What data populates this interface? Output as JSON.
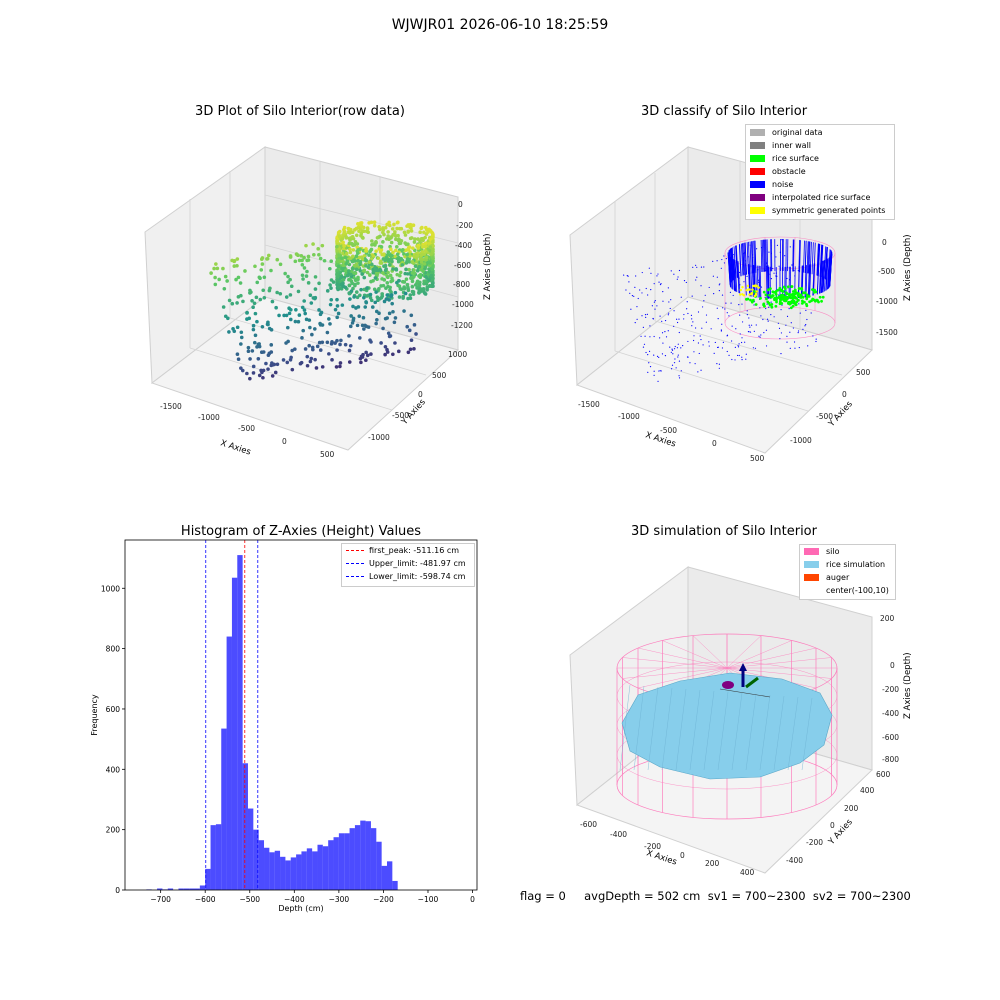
{
  "figure": {
    "suptitle": "WJWJR01 2026-06-10 18:25:59",
    "status_line": "flag = 0     avgDepth = 502 cm  sv1 = 700~2300  sv2 = 700~2300"
  },
  "panels": {
    "raw": {
      "title": "3D Plot of Silo Interior(row data)",
      "xlabel": "X Axies",
      "ylabel": "Y Axies",
      "zlabel": "Z Axies (Depth)",
      "xticks": [
        "-1500",
        "-1000",
        "-500",
        "0",
        "500"
      ],
      "yticks": [
        "1000",
        "500",
        "0",
        "-500",
        "-1000"
      ],
      "zticks": [
        "0",
        "-200",
        "-400",
        "-600",
        "-800",
        "-1000",
        "-1200"
      ]
    },
    "classify": {
      "title": "3D classify of Silo Interior",
      "xlabel": "X Axies",
      "ylabel": "Y Axies",
      "zlabel": "Z Axies (Depth)",
      "xticks": [
        "-1500",
        "-1000",
        "-500",
        "0",
        "500"
      ],
      "yticks": [
        "500",
        "0",
        "-500",
        "-1000"
      ],
      "zticks": [
        "0",
        "-500",
        "-1000",
        "-1500"
      ],
      "legend": [
        {
          "label": "original data",
          "color": "#b0b0b0"
        },
        {
          "label": "inner wall",
          "color": "#808080"
        },
        {
          "label": "rice surface",
          "color": "#00ff00"
        },
        {
          "label": "obstacle",
          "color": "#ff0000"
        },
        {
          "label": "noise",
          "color": "#0000ff"
        },
        {
          "label": "interpolated rice surface",
          "color": "#800080"
        },
        {
          "label": "symmetric generated points",
          "color": "#ffff00"
        }
      ]
    },
    "simulation": {
      "title": "3D simulation of Silo Interior",
      "xlabel": "X Axies",
      "ylabel": "Y Axies",
      "zlabel": "Z Axies (Depth)",
      "xticks": [
        "-600",
        "-400",
        "-200",
        "0",
        "200",
        "400"
      ],
      "yticks": [
        "600",
        "400",
        "200",
        "0",
        "-200",
        "-400"
      ],
      "zticks": [
        "200",
        "0",
        "-200",
        "-400",
        "-600",
        "-800"
      ],
      "legend": [
        {
          "label": "silo",
          "color": "#ff69b4"
        },
        {
          "label": "rice simulation",
          "color": "#87ceeb"
        },
        {
          "label": "auger",
          "color": "#ff4500"
        },
        {
          "label": "center(-100,10)",
          "color": "none"
        }
      ]
    }
  },
  "chart_data": {
    "type": "bar",
    "title": "Histogram of Z-Axies (Height) Values",
    "xlabel": "Depth (cm)",
    "ylabel": "Frequency",
    "xlim": [
      -780,
      10
    ],
    "ylim": [
      0,
      1160
    ],
    "xticks": [
      -700,
      -600,
      -500,
      -400,
      -300,
      -200,
      -100,
      0
    ],
    "yticks": [
      0,
      200,
      400,
      600,
      800,
      1000
    ],
    "bin_width": 12,
    "bin_lefts": [
      -732,
      -720,
      -708,
      -696,
      -684,
      -672,
      -660,
      -648,
      -636,
      -624,
      -612,
      -600,
      -588,
      -576,
      -564,
      -552,
      -540,
      -528,
      -516,
      -504,
      -492,
      -480,
      -468,
      -456,
      -444,
      -432,
      -420,
      -408,
      -396,
      -384,
      -372,
      -360,
      -348,
      -336,
      -324,
      -312,
      -300,
      -288,
      -276,
      -264,
      -252,
      -240,
      -228,
      -216,
      -204,
      -192,
      -180,
      -168,
      -156,
      -144,
      -132,
      -120,
      -108,
      -96,
      -84,
      -72,
      -60,
      -48,
      -36,
      -24
    ],
    "counts": [
      2,
      0,
      5,
      2,
      5,
      0,
      5,
      5,
      5,
      5,
      15,
      70,
      215,
      218,
      535,
      840,
      1035,
      1110,
      420,
      270,
      200,
      165,
      140,
      125,
      130,
      110,
      98,
      108,
      118,
      128,
      138,
      128,
      150,
      145,
      165,
      175,
      188,
      188,
      205,
      215,
      230,
      228,
      205,
      160,
      80,
      95,
      30,
      0,
      0,
      0,
      0,
      0,
      0,
      0,
      0,
      0,
      0,
      0,
      0,
      0
    ],
    "series_color": "#0000ff",
    "vlines": [
      {
        "label": "first_peak: -511.16 cm",
        "x": -511.16,
        "color": "#ff0000"
      },
      {
        "label": "Upper_limit: -481.97 cm",
        "x": -481.97,
        "color": "#0000ff"
      },
      {
        "label": "Lower_limit: -598.74 cm",
        "x": -598.74,
        "color": "#0000ff"
      }
    ],
    "legend_position": "top-right",
    "grid": false
  }
}
